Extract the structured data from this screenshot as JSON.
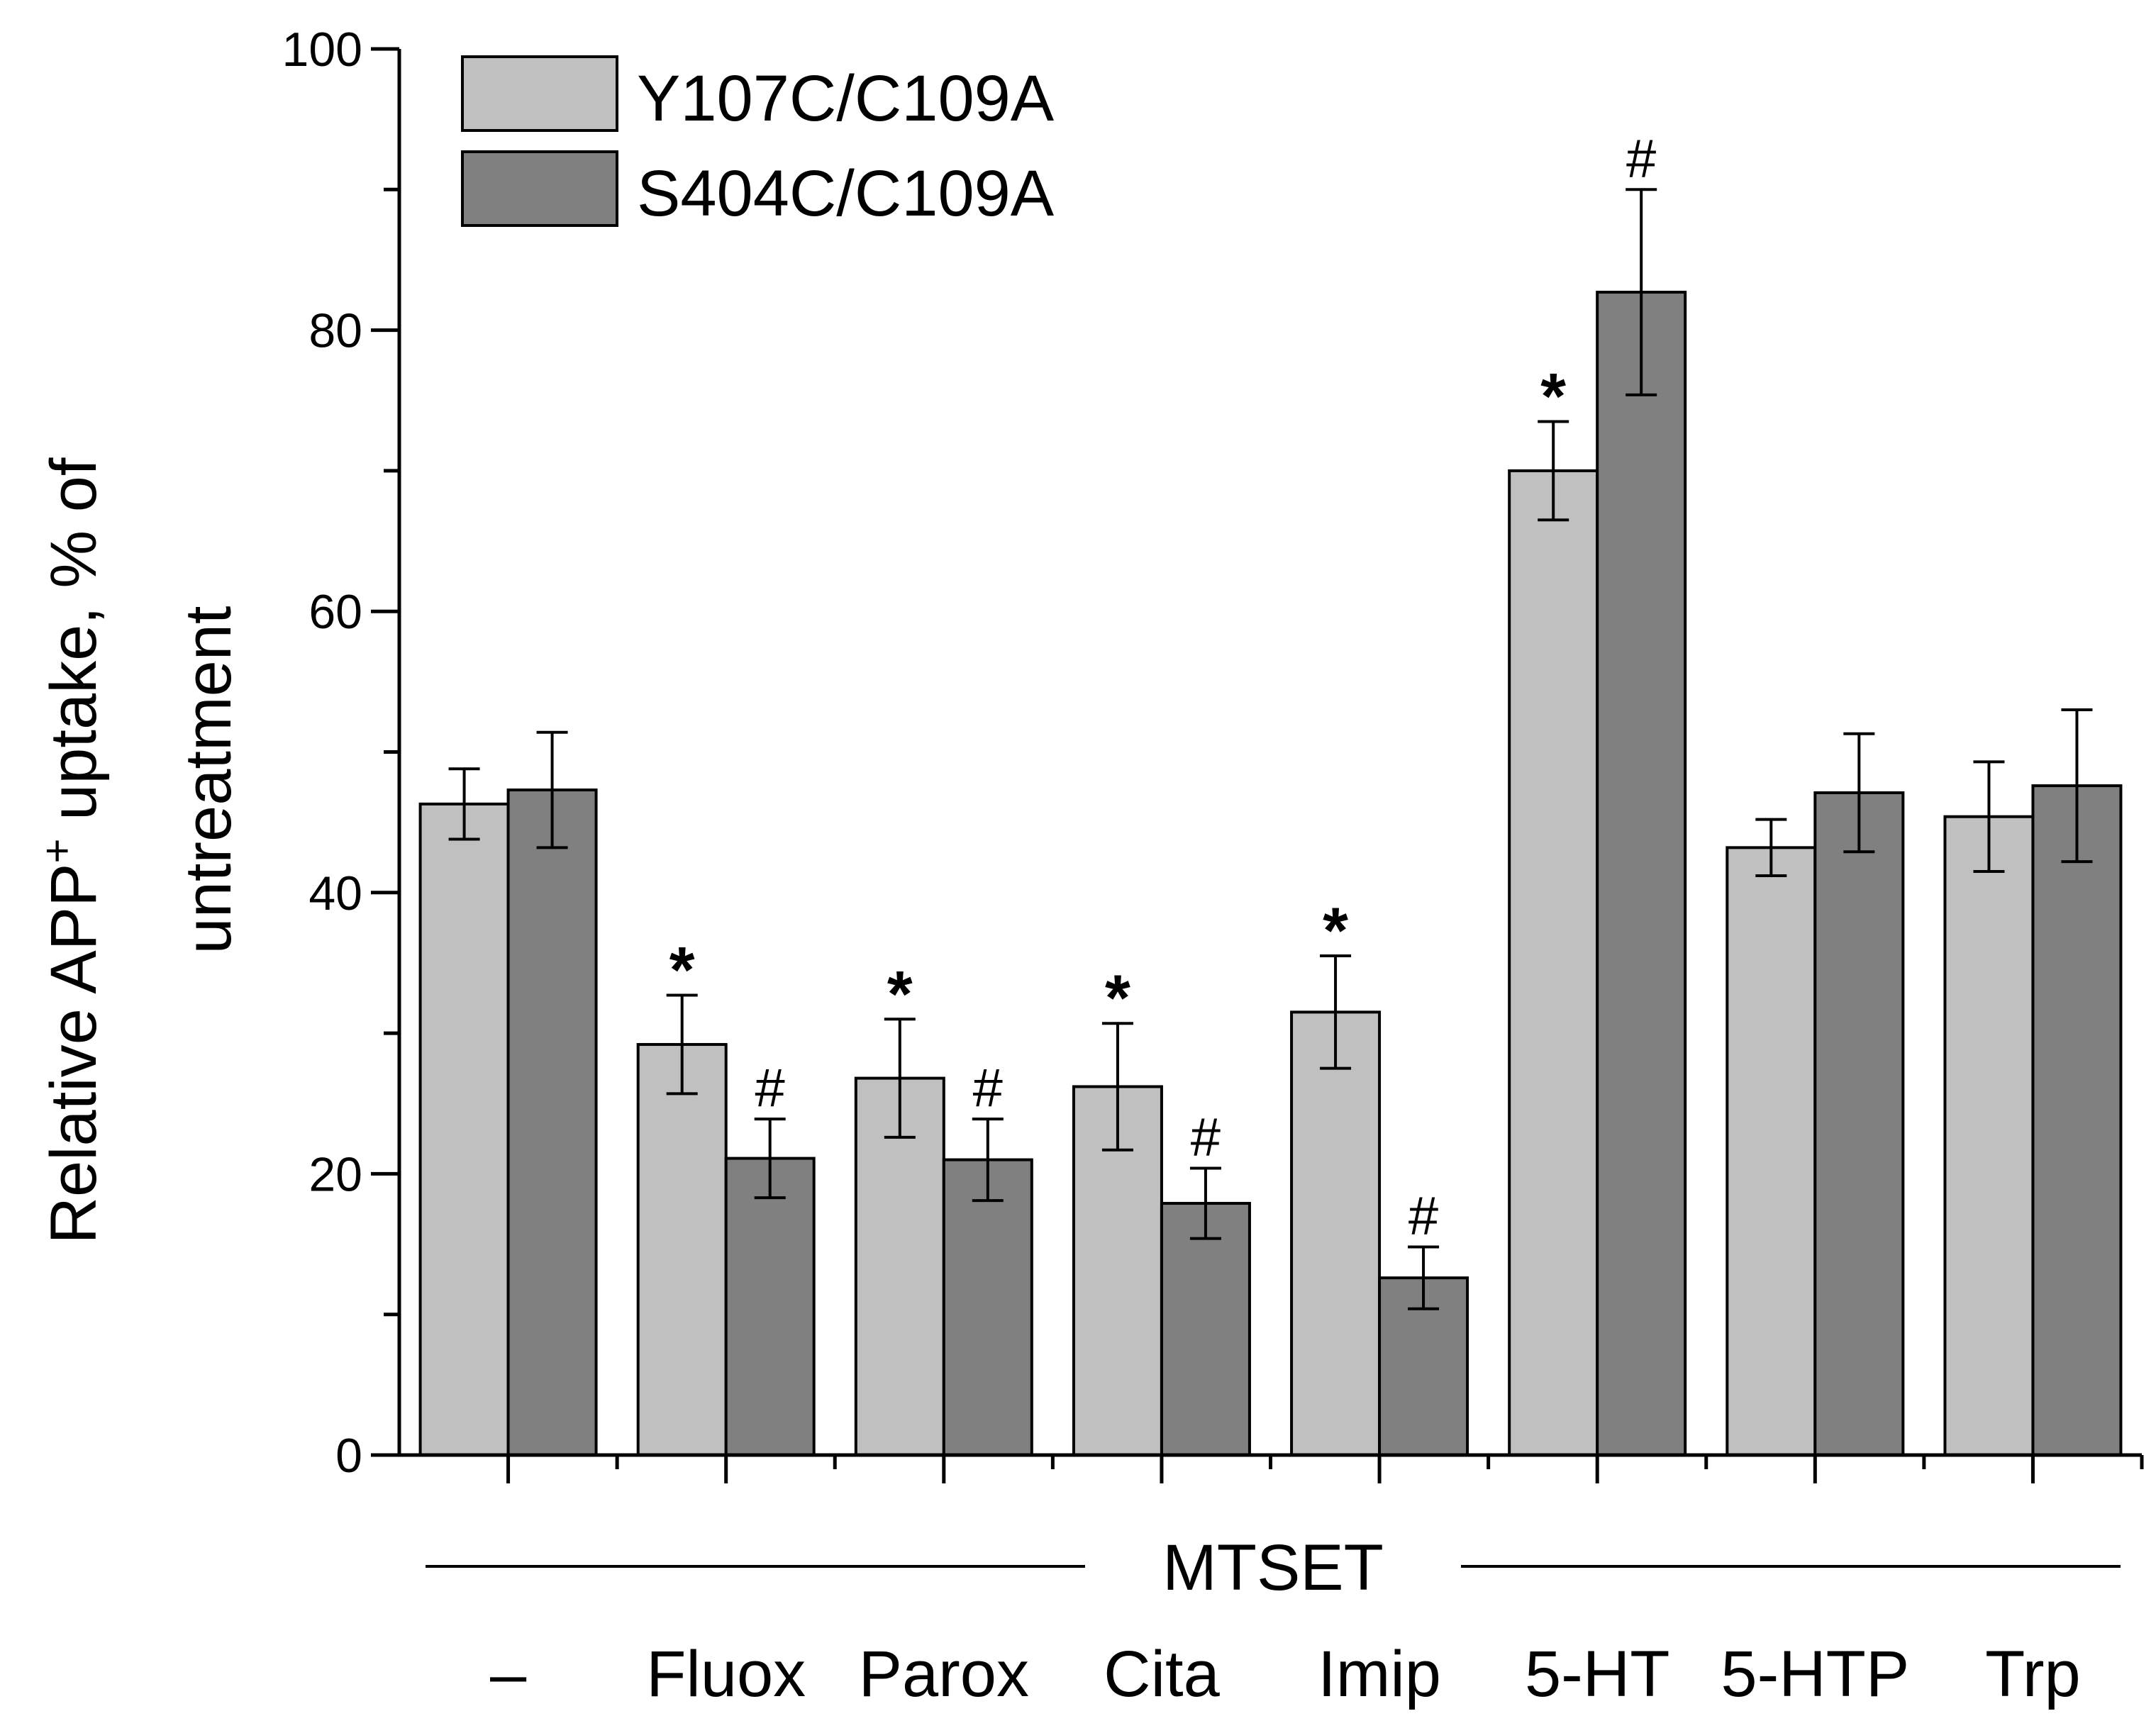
{
  "chart_data": {
    "type": "bar",
    "ylabel_line1": "Relative APP",
    "ylabel_sup": "+",
    "ylabel_line1_tail": " uptake, % of",
    "ylabel_line2": "untreatment",
    "ylim": [
      0,
      100
    ],
    "yticks": [
      "0",
      "20",
      "40",
      "60",
      "80",
      "100"
    ],
    "ytick_values": [
      0,
      20,
      40,
      60,
      80,
      100
    ],
    "group_label": "MTSET",
    "categories": [
      "–",
      "Fluox",
      "Parox",
      "Cita",
      "Imip",
      "5-HT",
      "5-HTP",
      "Trp"
    ],
    "legend_position": "top-left",
    "series": [
      {
        "name": "Y107C/C109A",
        "color": "#c0c0c0",
        "values": [
          46.3,
          29.2,
          26.8,
          26.2,
          31.5,
          70.0,
          43.2,
          45.4
        ],
        "errors": [
          2.5,
          3.5,
          4.2,
          4.5,
          4.0,
          3.5,
          2.0,
          3.9
        ],
        "significance": [
          "",
          "*",
          "*",
          "*",
          "*",
          "*",
          "",
          ""
        ]
      },
      {
        "name": "S404C/C109A",
        "color": "#808080",
        "values": [
          47.3,
          21.1,
          21.0,
          17.9,
          12.6,
          82.7,
          47.1,
          47.6
        ],
        "errors": [
          4.1,
          2.8,
          2.9,
          2.5,
          2.2,
          7.3,
          4.2,
          5.4
        ],
        "significance": [
          "",
          "#",
          "#",
          "#",
          "#",
          "#",
          "",
          ""
        ]
      }
    ]
  }
}
